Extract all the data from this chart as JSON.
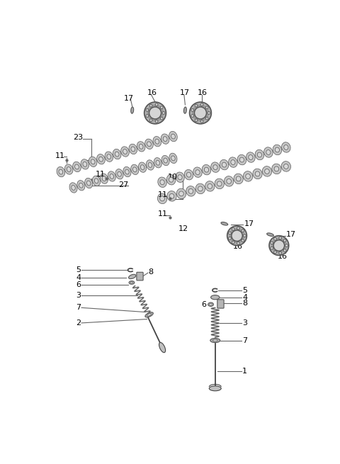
{
  "bg_color": "#ffffff",
  "line_color": "#666666",
  "dark_color": "#333333",
  "fig_width": 4.8,
  "fig_height": 6.55,
  "dpi": 100,
  "cam_color": "#c0c0c0",
  "cam_edge": "#555555",
  "bearing_outer": "#aaaaaa",
  "bearing_inner": "#e0e0e0",
  "part_fill": "#bbbbbb",
  "spring_color": "#666666"
}
